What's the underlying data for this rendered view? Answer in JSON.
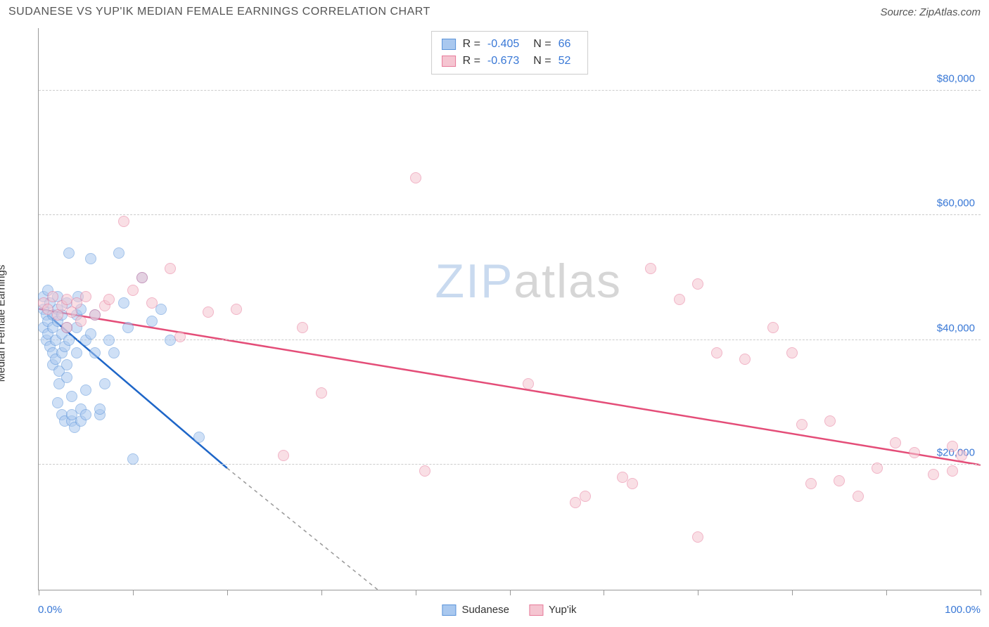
{
  "title": "SUDANESE VS YUP'IK MEDIAN FEMALE EARNINGS CORRELATION CHART",
  "source": "Source: ZipAtlas.com",
  "y_axis_label": "Median Female Earnings",
  "watermark": {
    "part1": "ZIP",
    "part2": "atlas"
  },
  "chart": {
    "type": "scatter",
    "xlim": [
      0,
      100
    ],
    "ylim": [
      0,
      90000
    ],
    "x_tick_positions": [
      0,
      10,
      20,
      30,
      40,
      50,
      60,
      70,
      80,
      90,
      100
    ],
    "x_label_min": "0.0%",
    "x_label_max": "100.0%",
    "y_gridlines": [
      20000,
      40000,
      60000,
      80000
    ],
    "y_tick_labels": [
      "$20,000",
      "$40,000",
      "$60,000",
      "$80,000"
    ],
    "background_color": "#ffffff",
    "grid_color": "#cccccc",
    "axis_color": "#999999",
    "tick_label_color": "#3978d6",
    "marker_radius": 8,
    "marker_opacity": 0.55,
    "series": [
      {
        "name": "Sudanese",
        "color_fill": "#a9c8ef",
        "color_stroke": "#5a93d9",
        "line_color": "#1e66c8",
        "R": "-0.405",
        "N": "66",
        "trend": {
          "x1": 1,
          "y1": 44000,
          "x2": 20,
          "y2": 19500,
          "dash_x2": 36,
          "dash_y2": 0
        },
        "points": [
          [
            0.5,
            45000
          ],
          [
            0.5,
            42000
          ],
          [
            0.5,
            47000
          ],
          [
            0.8,
            44000
          ],
          [
            0.8,
            40000
          ],
          [
            1,
            48000
          ],
          [
            1,
            43000
          ],
          [
            1,
            41000
          ],
          [
            1.2,
            39000
          ],
          [
            1.2,
            46000
          ],
          [
            1.5,
            44000
          ],
          [
            1.5,
            42000
          ],
          [
            1.5,
            38000
          ],
          [
            1.5,
            36000
          ],
          [
            1.8,
            37000
          ],
          [
            1.8,
            40000
          ],
          [
            2,
            43000
          ],
          [
            2,
            45000
          ],
          [
            2,
            47000
          ],
          [
            2,
            30000
          ],
          [
            2.2,
            35000
          ],
          [
            2.2,
            33000
          ],
          [
            2.5,
            38000
          ],
          [
            2.5,
            41000
          ],
          [
            2.5,
            44000
          ],
          [
            2.5,
            28000
          ],
          [
            2.8,
            27000
          ],
          [
            2.8,
            39000
          ],
          [
            3,
            36000
          ],
          [
            3,
            34000
          ],
          [
            3,
            42000
          ],
          [
            3,
            46000
          ],
          [
            3.2,
            54000
          ],
          [
            3.2,
            40000
          ],
          [
            3.5,
            27000
          ],
          [
            3.5,
            28000
          ],
          [
            3.5,
            31000
          ],
          [
            3.8,
            26000
          ],
          [
            4,
            42000
          ],
          [
            4,
            38000
          ],
          [
            4,
            44000
          ],
          [
            4.2,
            47000
          ],
          [
            4.5,
            45000
          ],
          [
            4.5,
            29000
          ],
          [
            4.5,
            27000
          ],
          [
            5,
            28000
          ],
          [
            5,
            32000
          ],
          [
            5,
            40000
          ],
          [
            5.5,
            53000
          ],
          [
            5.5,
            41000
          ],
          [
            6,
            38000
          ],
          [
            6,
            44000
          ],
          [
            6.5,
            28000
          ],
          [
            6.5,
            29000
          ],
          [
            7,
            33000
          ],
          [
            7.5,
            40000
          ],
          [
            8,
            38000
          ],
          [
            8.5,
            54000
          ],
          [
            9,
            46000
          ],
          [
            9.5,
            42000
          ],
          [
            10,
            21000
          ],
          [
            12,
            43000
          ],
          [
            13,
            45000
          ],
          [
            14,
            40000
          ],
          [
            17,
            24500
          ],
          [
            11,
            50000
          ]
        ]
      },
      {
        "name": "Yup'ik",
        "color_fill": "#f5c5d1",
        "color_stroke": "#e77a9a",
        "line_color": "#e44d78",
        "R": "-0.673",
        "N": "52",
        "trend": {
          "x1": 0,
          "y1": 45000,
          "x2": 100,
          "y2": 20000
        },
        "points": [
          [
            0.5,
            46000
          ],
          [
            1,
            45000
          ],
          [
            1.5,
            47000
          ],
          [
            2,
            44000
          ],
          [
            2.5,
            45500
          ],
          [
            3,
            46500
          ],
          [
            3,
            42000
          ],
          [
            3.5,
            44500
          ],
          [
            4,
            46000
          ],
          [
            4.5,
            43000
          ],
          [
            5,
            47000
          ],
          [
            6,
            44000
          ],
          [
            7,
            45500
          ],
          [
            7.5,
            46500
          ],
          [
            9,
            59000
          ],
          [
            10,
            48000
          ],
          [
            11,
            50000
          ],
          [
            12,
            46000
          ],
          [
            14,
            51500
          ],
          [
            15,
            40500
          ],
          [
            18,
            44500
          ],
          [
            21,
            45000
          ],
          [
            26,
            21500
          ],
          [
            28,
            42000
          ],
          [
            30,
            31500
          ],
          [
            40,
            66000
          ],
          [
            41,
            19000
          ],
          [
            52,
            33000
          ],
          [
            57,
            14000
          ],
          [
            58,
            15000
          ],
          [
            62,
            18000
          ],
          [
            63,
            17000
          ],
          [
            65,
            51500
          ],
          [
            68,
            46500
          ],
          [
            70,
            49000
          ],
          [
            72,
            38000
          ],
          [
            75,
            37000
          ],
          [
            78,
            42000
          ],
          [
            80,
            38000
          ],
          [
            70,
            8500
          ],
          [
            81,
            26500
          ],
          [
            82,
            17000
          ],
          [
            84,
            27000
          ],
          [
            85,
            17500
          ],
          [
            87,
            15000
          ],
          [
            89,
            19500
          ],
          [
            91,
            23500
          ],
          [
            93,
            22000
          ],
          [
            95,
            18500
          ],
          [
            97,
            19000
          ],
          [
            97,
            23000
          ],
          [
            98,
            21500
          ]
        ]
      }
    ],
    "bottom_legend": [
      {
        "label": "Sudanese",
        "fill": "#a9c8ef",
        "stroke": "#5a93d9"
      },
      {
        "label": "Yup'ik",
        "fill": "#f5c5d1",
        "stroke": "#e77a9a"
      }
    ]
  }
}
